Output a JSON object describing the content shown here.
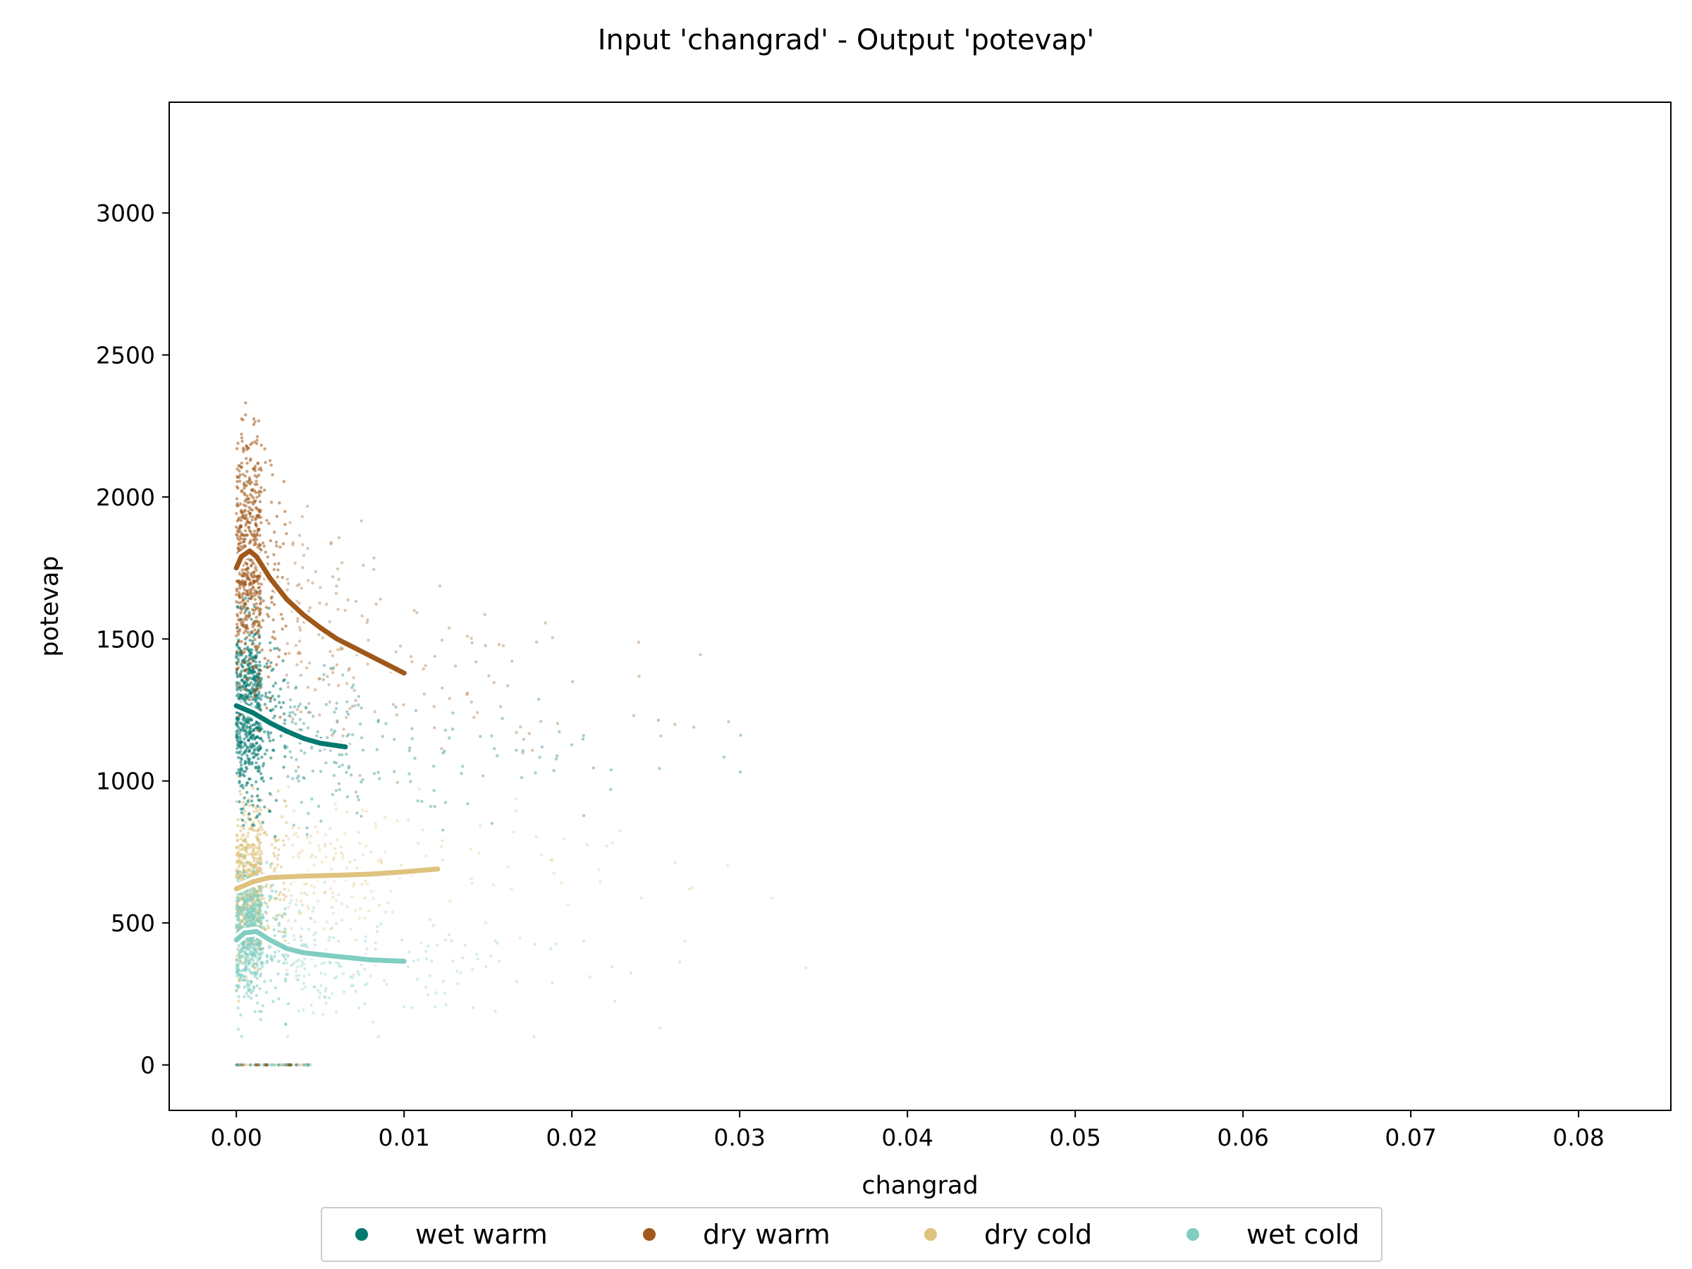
{
  "chart_data": {
    "type": "scatter",
    "title": "Input 'changrad' - Output 'potevap'",
    "xlabel": "changrad",
    "ylabel": "potevap",
    "xlim": [
      -0.004,
      0.0855
    ],
    "ylim": [
      -160,
      3390
    ],
    "x_ticks": [
      0.0,
      0.01,
      0.02,
      0.03,
      0.04,
      0.05,
      0.06,
      0.07,
      0.08
    ],
    "x_tick_labels": [
      "0.00",
      "0.01",
      "0.02",
      "0.03",
      "0.04",
      "0.05",
      "0.06",
      "0.07",
      "0.08"
    ],
    "y_ticks": [
      0,
      500,
      1000,
      1500,
      2000,
      2500,
      3000
    ],
    "y_tick_labels": [
      "0",
      "500",
      "1000",
      "1500",
      "2000",
      "2500",
      "3000"
    ],
    "grid": false,
    "legend_position": "bottom-center",
    "series": [
      {
        "name": "wet warm",
        "color": "#01796f",
        "trend": [
          [
            0.0,
            1265
          ],
          [
            0.001,
            1240
          ],
          [
            0.002,
            1205
          ],
          [
            0.003,
            1175
          ],
          [
            0.004,
            1150
          ],
          [
            0.005,
            1133
          ],
          [
            0.0065,
            1120
          ]
        ]
      },
      {
        "name": "dry warm",
        "color": "#a0581a",
        "trend": [
          [
            0.0,
            1750
          ],
          [
            0.0003,
            1790
          ],
          [
            0.0008,
            1810
          ],
          [
            0.0012,
            1790
          ],
          [
            0.002,
            1715
          ],
          [
            0.003,
            1640
          ],
          [
            0.004,
            1585
          ],
          [
            0.005,
            1540
          ],
          [
            0.006,
            1500
          ],
          [
            0.007,
            1470
          ],
          [
            0.008,
            1440
          ],
          [
            0.009,
            1410
          ],
          [
            0.01,
            1380
          ]
        ]
      },
      {
        "name": "dry cold",
        "color": "#dfc27d",
        "trend": [
          [
            0.0,
            620
          ],
          [
            0.001,
            645
          ],
          [
            0.002,
            660
          ],
          [
            0.004,
            665
          ],
          [
            0.006,
            668
          ],
          [
            0.008,
            672
          ],
          [
            0.01,
            680
          ],
          [
            0.012,
            690
          ]
        ]
      },
      {
        "name": "wet cold",
        "color": "#80cdc1",
        "trend": [
          [
            0.0,
            440
          ],
          [
            0.0005,
            465
          ],
          [
            0.0012,
            470
          ],
          [
            0.002,
            440
          ],
          [
            0.003,
            410
          ],
          [
            0.004,
            395
          ],
          [
            0.006,
            382
          ],
          [
            0.008,
            370
          ],
          [
            0.01,
            365
          ]
        ]
      }
    ]
  }
}
